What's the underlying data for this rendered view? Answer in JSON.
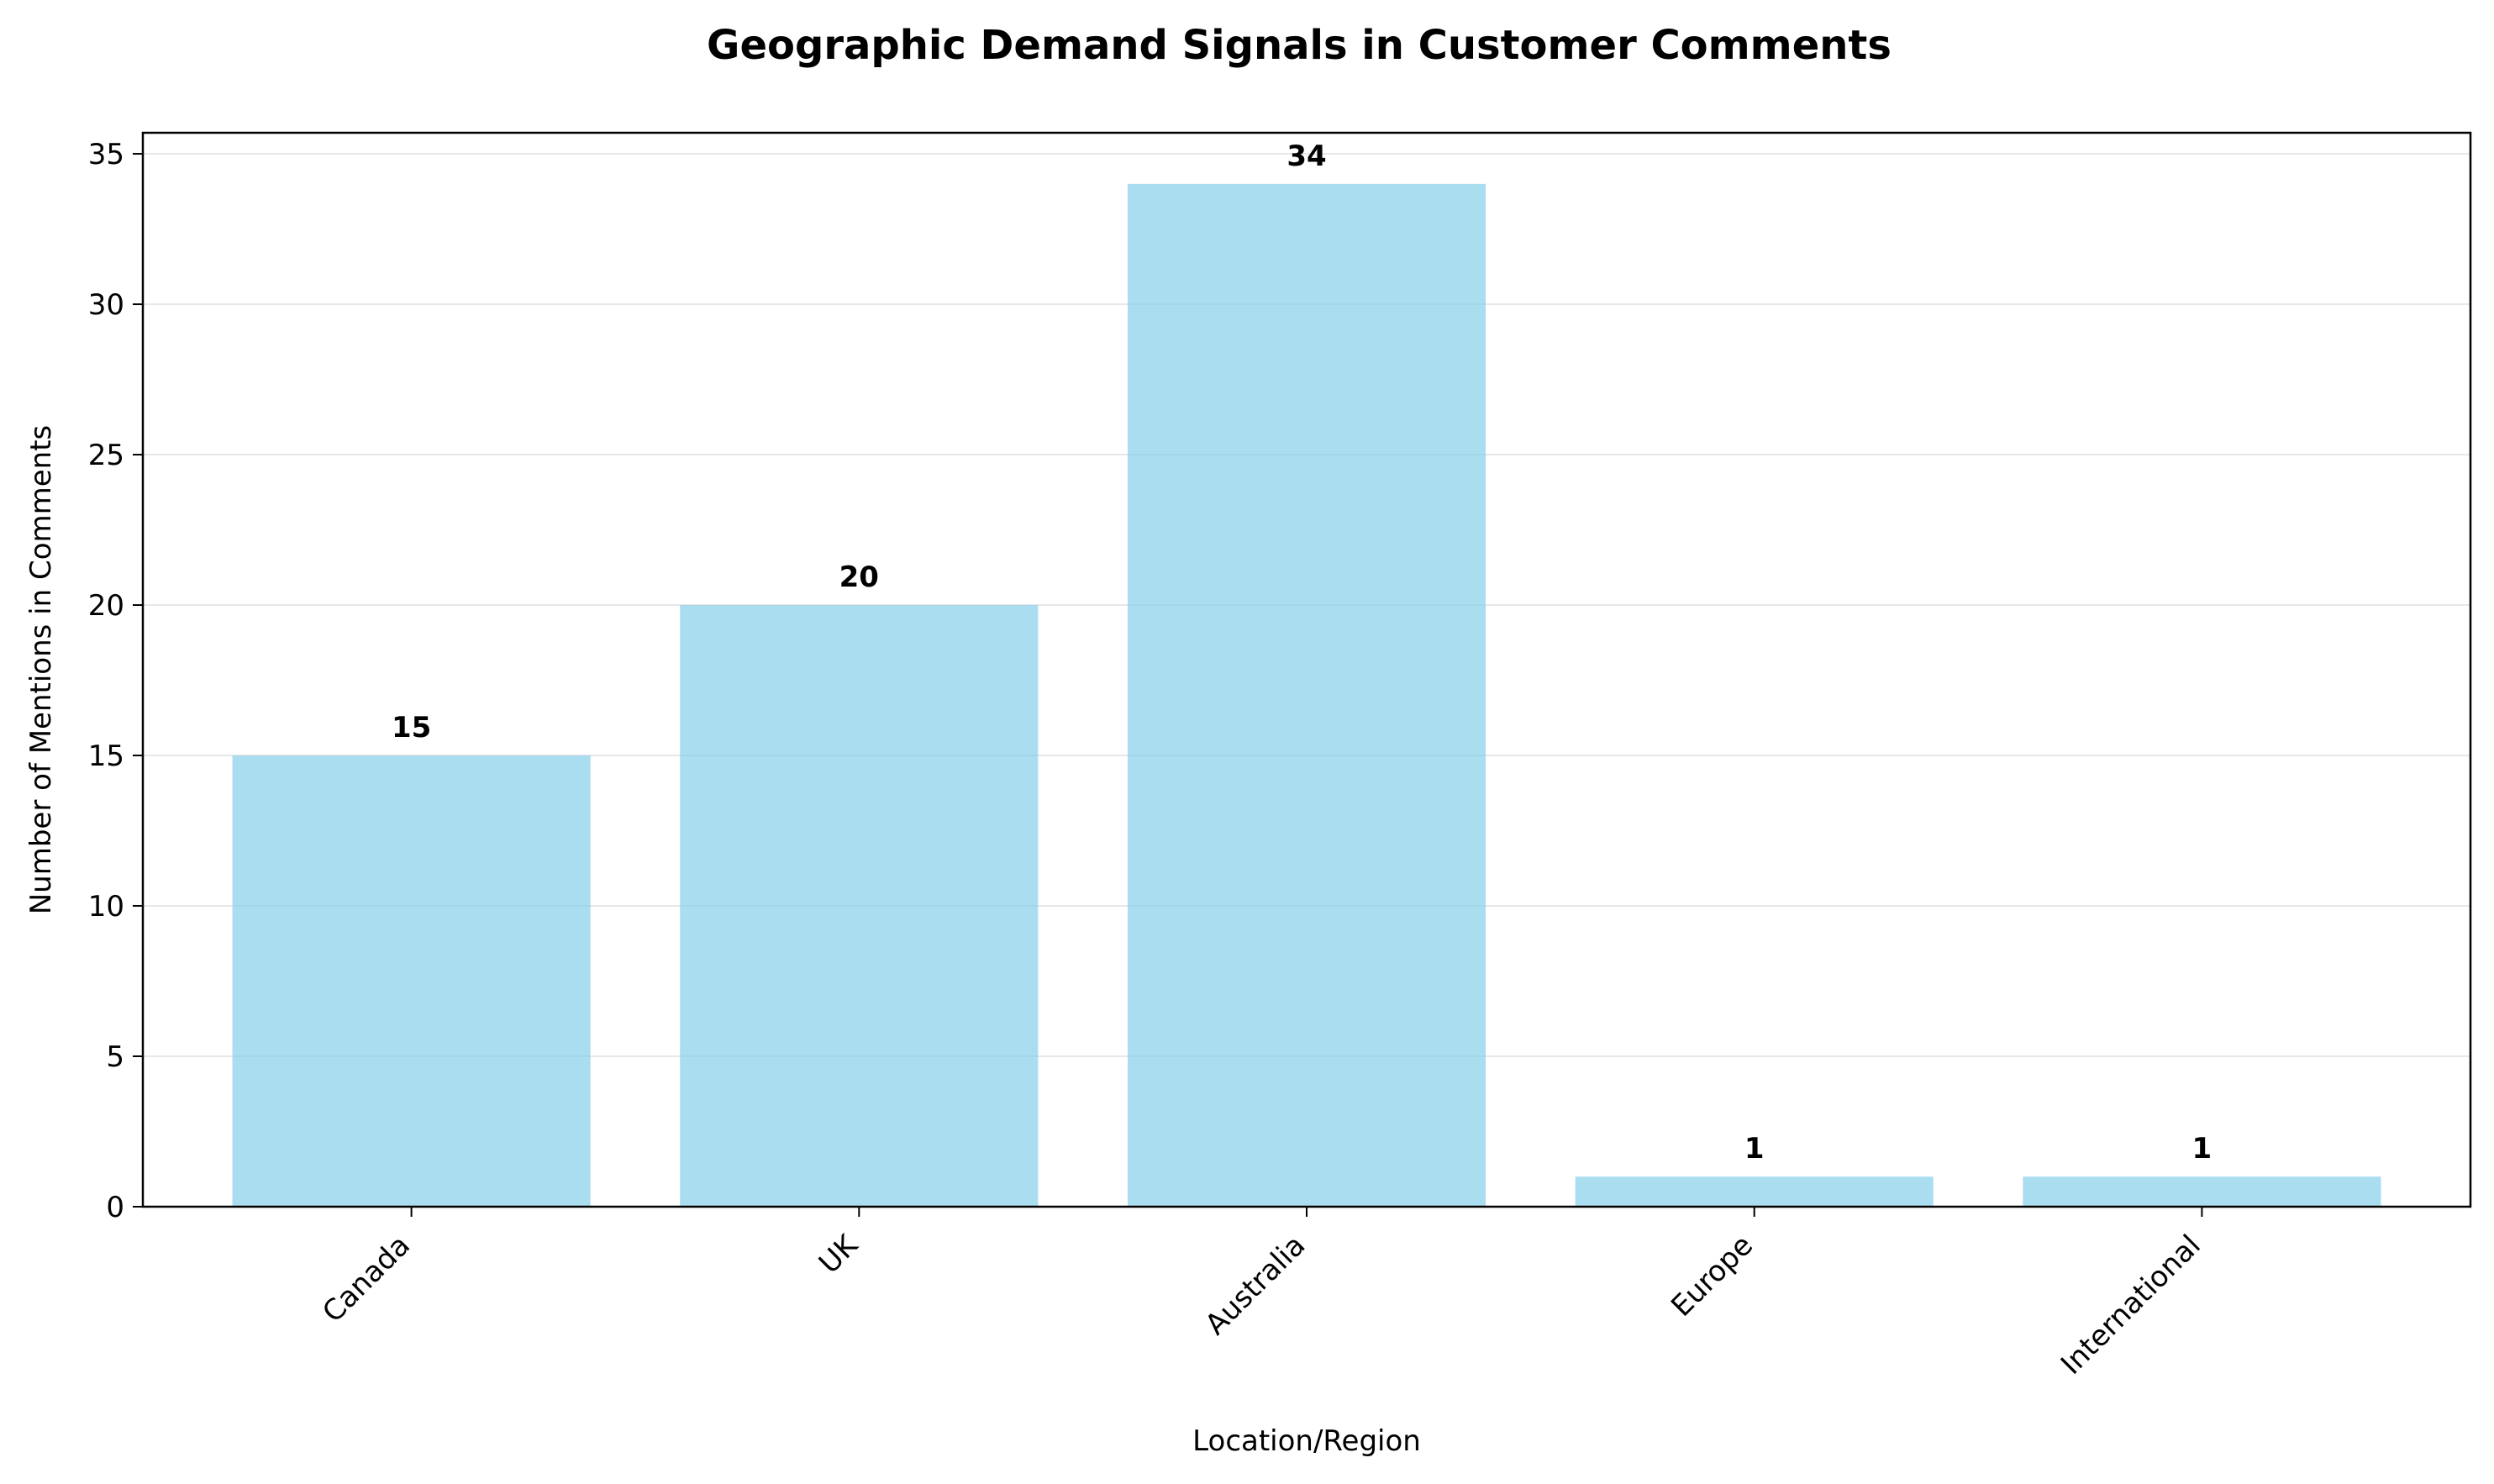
{
  "chart_data": {
    "type": "bar",
    "title": "Geographic Demand Signals in Customer Comments",
    "xlabel": "Location/Region",
    "ylabel": "Number of Mentions in Comments",
    "categories": [
      "Canada",
      "UK",
      "Australia",
      "Europe",
      "International"
    ],
    "values": [
      15,
      20,
      34,
      1,
      1
    ],
    "ylim": [
      0,
      35.7
    ],
    "yticks": [
      0,
      5,
      10,
      15,
      20,
      25,
      30,
      35
    ],
    "grid": "y",
    "bar_color": "#87CEEB",
    "xtick_rotation": 45
  }
}
